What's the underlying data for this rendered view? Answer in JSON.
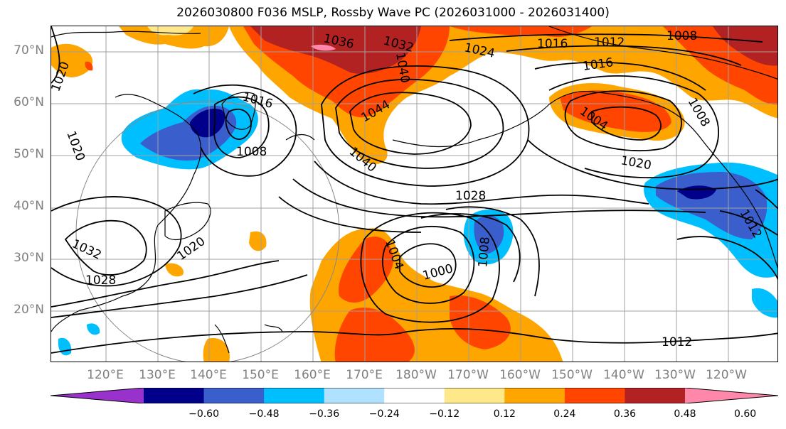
{
  "title": "2026030800 F036 MSLP, Rossby Wave PC (2026031000 - 2026031400)",
  "lat_labels": [
    "70°N",
    "60°N",
    "50°N",
    "40°N",
    "30°N",
    "20°N"
  ],
  "lon_labels": [
    "120°E",
    "130°E",
    "140°E",
    "150°E",
    "160°E",
    "170°E",
    "180°W",
    "170°W",
    "160°W",
    "150°W",
    "140°W",
    "130°W",
    "120°W"
  ],
  "isobar_labels": [
    {
      "text": "1036"
    },
    {
      "text": "1032"
    },
    {
      "text": "1040"
    },
    {
      "text": "1024"
    },
    {
      "text": "1016"
    },
    {
      "text": "1012"
    },
    {
      "text": "1008"
    },
    {
      "text": "1016"
    },
    {
      "text": "1016"
    },
    {
      "text": "1008"
    },
    {
      "text": "1044"
    },
    {
      "text": "1004"
    },
    {
      "text": "1020"
    },
    {
      "text": "1040"
    },
    {
      "text": "1020"
    },
    {
      "text": "1028"
    },
    {
      "text": "1020"
    },
    {
      "text": "1032"
    },
    {
      "text": "1028"
    },
    {
      "text": "1004"
    },
    {
      "text": "1000"
    },
    {
      "text": "1008"
    },
    {
      "text": "1012"
    },
    {
      "text": "1012"
    },
    {
      "text": "1020"
    },
    {
      "text": "1008"
    }
  ],
  "colorbar": {
    "ticks": [
      "−0.60",
      "−0.48",
      "−0.36",
      "−0.24",
      "−0.12",
      "0.12",
      "0.24",
      "0.36",
      "0.48",
      "0.60"
    ],
    "colors": [
      "#9932cc",
      "#00008b",
      "#3a5fcd",
      "#00bfff",
      "#b0e2ff",
      "#ffffff",
      "#ffe88a",
      "#ffa500",
      "#ff4500",
      "#b22222",
      "#ff88aa"
    ]
  },
  "map": {
    "fill_colors": {
      "orange": "#ffa500",
      "red_orange": "#ff4500",
      "dark_red": "#b22222",
      "pink": "#ff88aa",
      "light_yellow": "#ffe88a",
      "light_blue": "#b0e2ff",
      "sky_blue": "#00bfff",
      "royal_blue": "#3a5fcd",
      "navy": "#00008b",
      "grid": "#a0a0a0"
    }
  }
}
